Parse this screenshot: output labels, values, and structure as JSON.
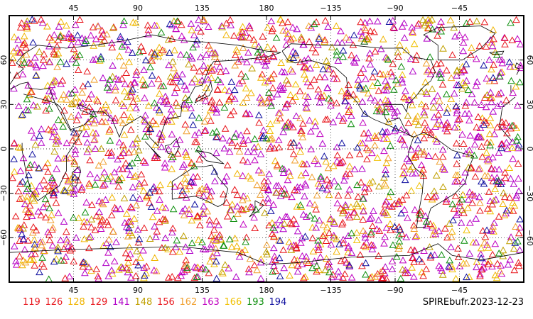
{
  "map": {
    "lon_ticks": [
      {
        "value": 45,
        "label": "45"
      },
      {
        "value": 90,
        "label": "90"
      },
      {
        "value": 135,
        "label": "135"
      },
      {
        "value": 180,
        "label": "180"
      },
      {
        "value": 225,
        "label": "−135"
      },
      {
        "value": 270,
        "label": "−90"
      },
      {
        "value": 315,
        "label": "−45"
      }
    ],
    "lat_ticks": [
      {
        "value": 60,
        "label": "60"
      },
      {
        "value": 30,
        "label": "30"
      },
      {
        "value": 0,
        "label": "0"
      },
      {
        "value": -30,
        "label": "−30"
      },
      {
        "value": -60,
        "label": "−60"
      }
    ],
    "lon_range": [
      0,
      360
    ],
    "lat_range": [
      -90,
      90
    ],
    "grid": "dotted",
    "marker": "triangle-outline"
  },
  "legend": {
    "items": [
      {
        "label": "119",
        "color": "#e8181e"
      },
      {
        "label": "126",
        "color": "#e8181e"
      },
      {
        "label": "128",
        "color": "#f0b400"
      },
      {
        "label": "129",
        "color": "#e8181e"
      },
      {
        "label": "141",
        "color": "#b000c8"
      },
      {
        "label": "148",
        "color": "#c0a000"
      },
      {
        "label": "156",
        "color": "#e8181e"
      },
      {
        "label": "162",
        "color": "#f0a030"
      },
      {
        "label": "163",
        "color": "#c000c0"
      },
      {
        "label": "166",
        "color": "#f0c000"
      },
      {
        "label": "193",
        "color": "#109010"
      },
      {
        "label": "194",
        "color": "#1010a0"
      }
    ]
  },
  "footer": {
    "title": "SPIREbufr.2023-12-23"
  }
}
